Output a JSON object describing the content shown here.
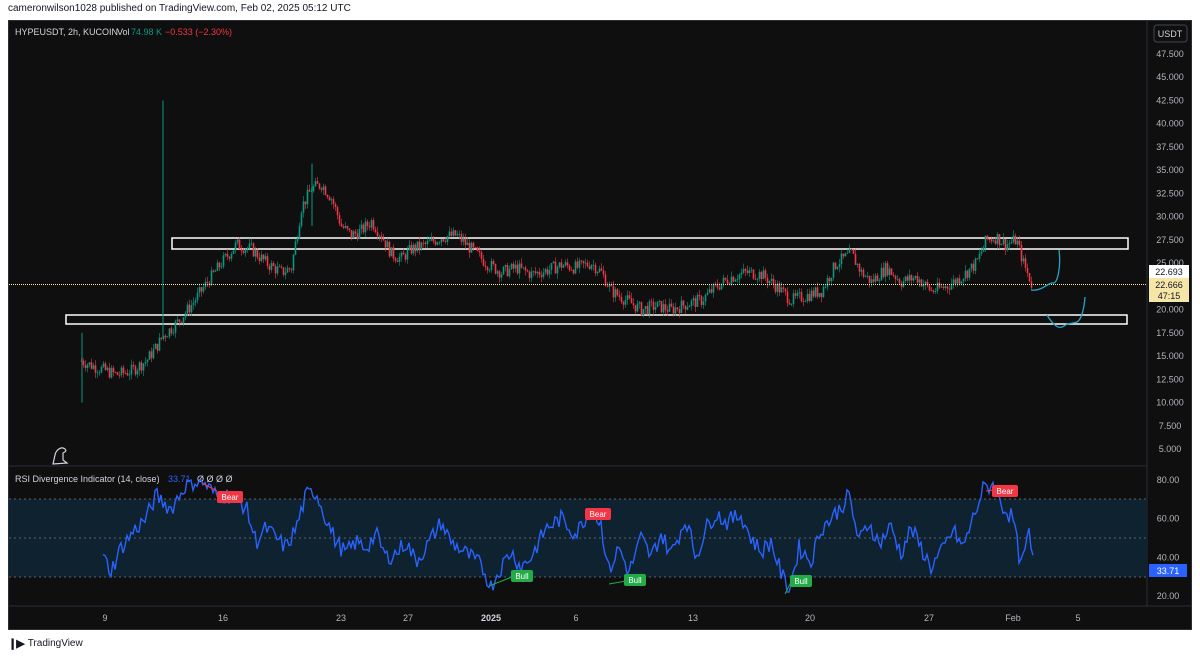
{
  "header": {
    "publisher_line": "cameronwilson1028 published on TradingView.com, Feb 02, 2025 05:12 UTC"
  },
  "symbol": {
    "name": "HYPEUSDT, 2h, KUCOIN",
    "vol_label": "Vol",
    "vol_value": "74.98 K",
    "change": "−0.533 (−2.30%)"
  },
  "currency_button": "USDT",
  "price_axis": {
    "ticks": [
      "47.500",
      "45.000",
      "42.500",
      "40.000",
      "37.500",
      "35.000",
      "32.500",
      "30.000",
      "27.500",
      "25.000",
      "22.500",
      "20.000",
      "17.500",
      "15.000",
      "12.500",
      "10.000",
      "7.500",
      "5.000"
    ],
    "labels": {
      "high": "22.693",
      "last": "22.666",
      "countdown": "47:15"
    }
  },
  "rsi": {
    "title": "RSI Divergence Indicator (14, close)",
    "value": "33.71",
    "placeholders": "Ø Ø Ø Ø",
    "axis_ticks": [
      "80.00",
      "60.00",
      "40.00",
      "20.00"
    ],
    "last_label": "33.71",
    "bear_label": "Bear",
    "bull_label": "Bull"
  },
  "time_axis": [
    "9",
    "16",
    "23",
    "27",
    "2025",
    "6",
    "13",
    "20",
    "27",
    "Feb",
    "5"
  ],
  "footer": {
    "brand": "TradingView"
  },
  "colors": {
    "background": "#0f0f0f",
    "up": "#089981",
    "down": "#f23645",
    "rsi_line": "#2962ff",
    "rsi_band": "#0e2230",
    "zone_border": "#ffffff",
    "price_line": "#f5e6a8",
    "projection": "#26a5c4",
    "bear": "#f23645",
    "bull": "#22ab46"
  }
}
